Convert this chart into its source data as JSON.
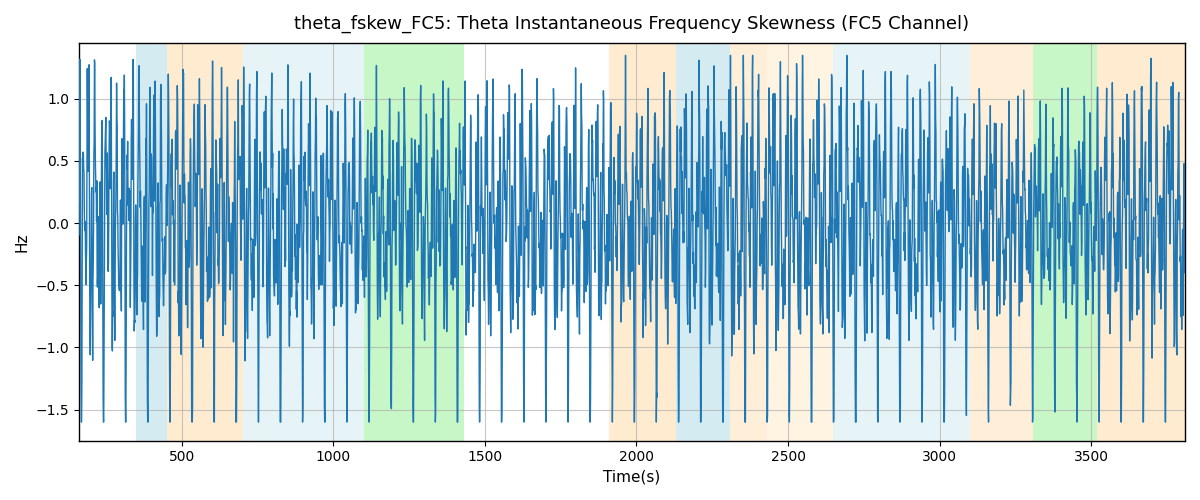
{
  "title": "theta_fskew_FC5: Theta Instantaneous Frequency Skewness (FC5 Channel)",
  "xlabel": "Time(s)",
  "ylabel": "Hz",
  "xlim": [
    160,
    3810
  ],
  "ylim": [
    -1.75,
    1.45
  ],
  "yticks": [
    -1.5,
    -1.0,
    -0.5,
    0.0,
    0.5,
    1.0
  ],
  "xticks": [
    500,
    1000,
    1500,
    2000,
    2500,
    3000,
    3500
  ],
  "background_color": "#ffffff",
  "line_color": "#1f77b4",
  "line_width": 1.0,
  "grid_color": "#b0b0b0",
  "grid_alpha": 0.7,
  "bands": [
    {
      "xmin": 350,
      "xmax": 450,
      "color": "#add8e6",
      "alpha": 0.5
    },
    {
      "xmin": 450,
      "xmax": 700,
      "color": "#ffd9a0",
      "alpha": 0.5
    },
    {
      "xmin": 700,
      "xmax": 900,
      "color": "#add8e6",
      "alpha": 0.3
    },
    {
      "xmin": 900,
      "xmax": 1100,
      "color": "#add8e6",
      "alpha": 0.3
    },
    {
      "xmin": 1100,
      "xmax": 1430,
      "color": "#90ee90",
      "alpha": 0.5
    },
    {
      "xmin": 1910,
      "xmax": 2130,
      "color": "#ffd9a0",
      "alpha": 0.5
    },
    {
      "xmin": 2130,
      "xmax": 2310,
      "color": "#add8e6",
      "alpha": 0.5
    },
    {
      "xmin": 2310,
      "xmax": 2430,
      "color": "#ffd9a0",
      "alpha": 0.4
    },
    {
      "xmin": 2430,
      "xmax": 2650,
      "color": "#ffd9a0",
      "alpha": 0.3
    },
    {
      "xmin": 2650,
      "xmax": 2800,
      "color": "#add8e6",
      "alpha": 0.3
    },
    {
      "xmin": 2800,
      "xmax": 2960,
      "color": "#add8e6",
      "alpha": 0.3
    },
    {
      "xmin": 2960,
      "xmax": 3100,
      "color": "#add8e6",
      "alpha": 0.3
    },
    {
      "xmin": 3100,
      "xmax": 3310,
      "color": "#ffd9a0",
      "alpha": 0.4
    },
    {
      "xmin": 3310,
      "xmax": 3520,
      "color": "#90ee90",
      "alpha": 0.5
    },
    {
      "xmin": 3520,
      "xmax": 3810,
      "color": "#ffd9a0",
      "alpha": 0.5
    }
  ],
  "seed": 42,
  "n_points": 3700,
  "figsize": [
    12.0,
    5.0
  ],
  "dpi": 100
}
